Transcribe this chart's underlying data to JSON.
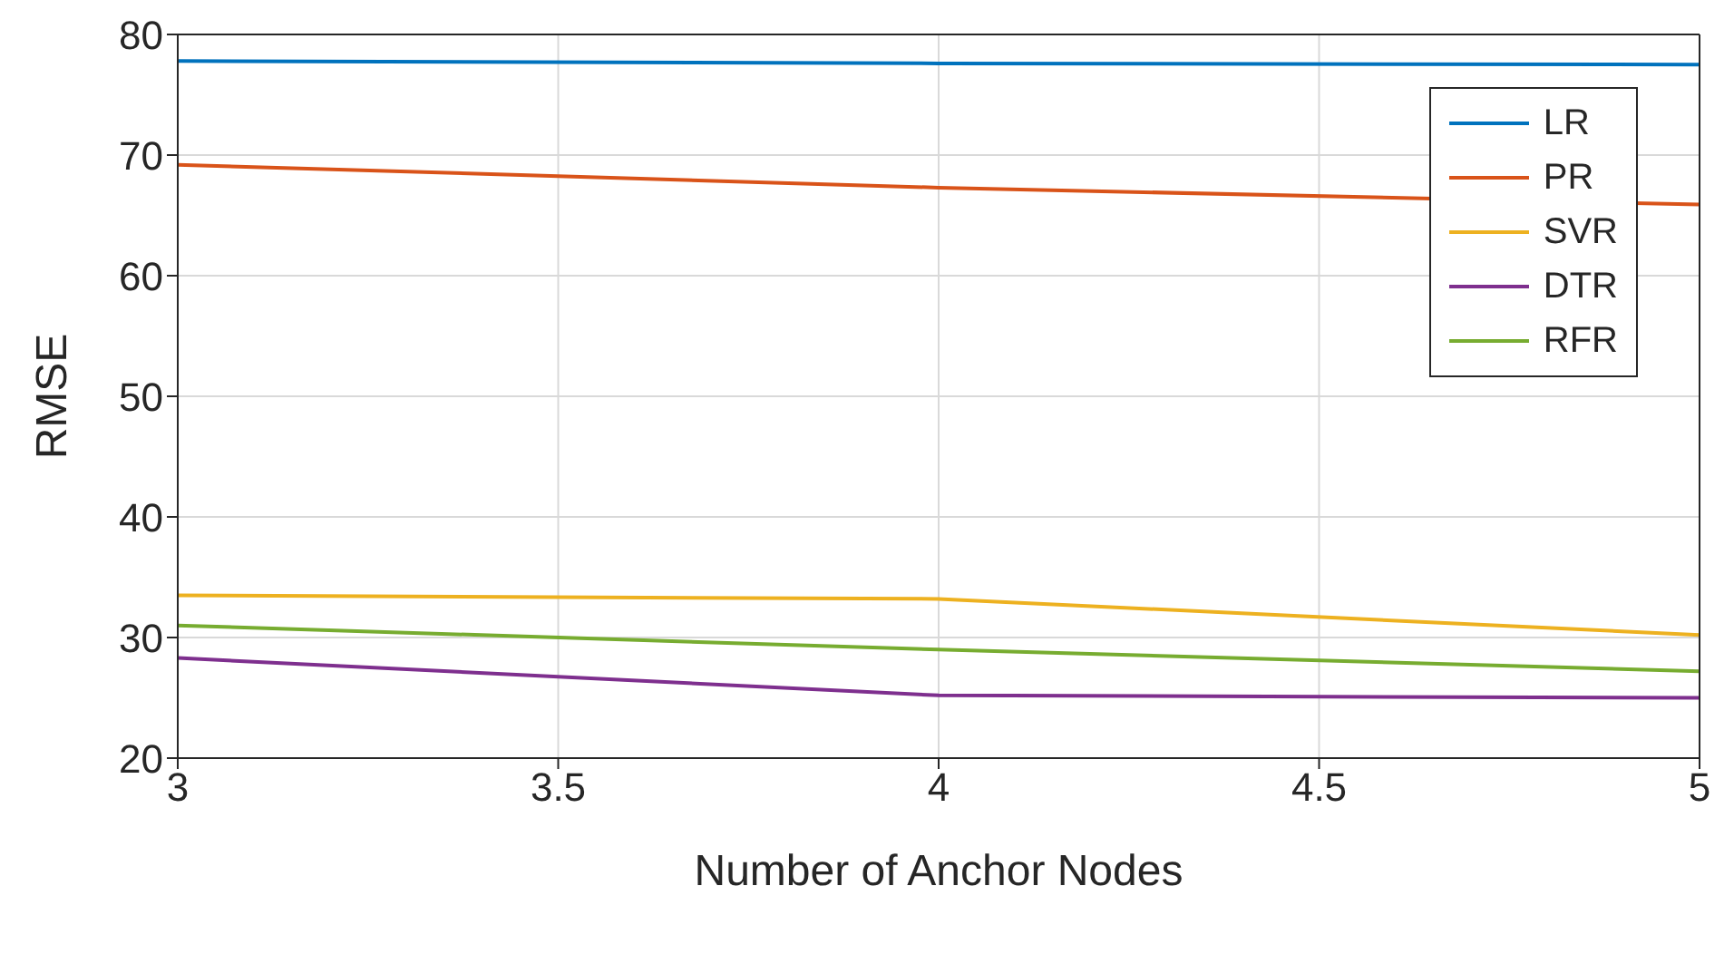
{
  "chart_data": {
    "type": "line",
    "xlabel": "Number of Anchor Nodes",
    "ylabel": "RMSE",
    "x": [
      3,
      4,
      5
    ],
    "series": [
      {
        "name": "LR",
        "color": "#0072bd",
        "values": [
          77.8,
          77.6,
          77.5
        ]
      },
      {
        "name": "PR",
        "color": "#d95319",
        "values": [
          69.2,
          67.3,
          65.9
        ]
      },
      {
        "name": "SVR",
        "color": "#edb120",
        "values": [
          33.5,
          33.2,
          30.2
        ]
      },
      {
        "name": "DTR",
        "color": "#7e2f8e",
        "values": [
          28.3,
          25.2,
          25.0
        ]
      },
      {
        "name": "RFR",
        "color": "#77ac30",
        "values": [
          31.0,
          29.0,
          27.2
        ]
      }
    ],
    "xlim": [
      3,
      5
    ],
    "xticks": [
      3,
      3.5,
      4,
      4.5,
      5
    ],
    "ylim": [
      20,
      80
    ],
    "yticks": [
      20,
      30,
      40,
      50,
      60,
      70,
      80
    ],
    "grid": true,
    "legend": "top right",
    "marker": "none",
    "line_style": "solid"
  }
}
